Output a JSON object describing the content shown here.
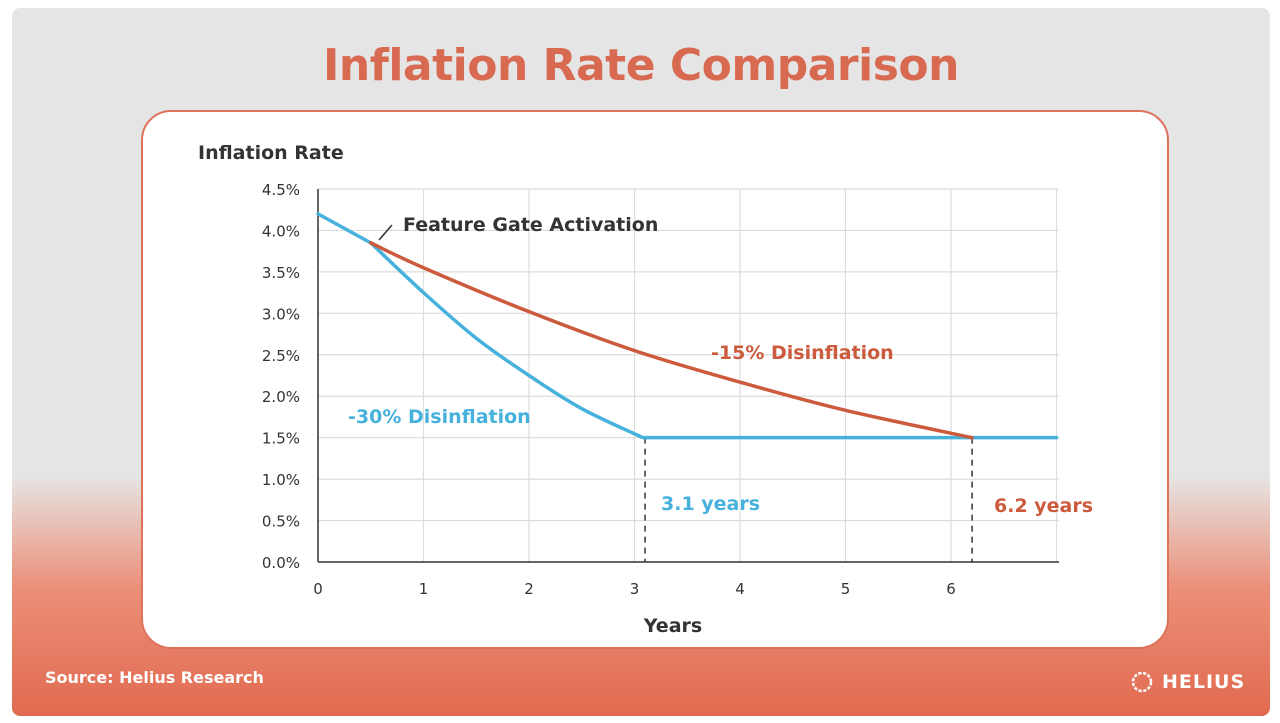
{
  "page": {
    "title": "Inflation Rate Comparison",
    "source": "Source: Helius Research",
    "logo_text": "HELIUS"
  },
  "colors": {
    "title": "#d96a52",
    "blue_series": "#45b1dc",
    "orange_series": "#cc5a3c",
    "grid": "#dcdcdc",
    "axis": "#333333"
  },
  "chart_data": {
    "type": "line",
    "title": "Inflation Rate Comparison",
    "ylabel": "Inflation Rate",
    "xlabel": "Years",
    "xlim": [
      0,
      7
    ],
    "ylim": [
      0,
      4.5
    ],
    "x_ticks": [
      "0",
      "1",
      "2",
      "3",
      "4",
      "5",
      "6"
    ],
    "y_ticks": [
      "0.0%",
      "0.5%",
      "1.0%",
      "1.5%",
      "2.0%",
      "2.5%",
      "3.0%",
      "3.5%",
      "4.0%",
      "4.5%"
    ],
    "grid": true,
    "series": [
      {
        "name": "-30% Disinflation",
        "color": "#45b1dc",
        "x": [
          0,
          0.5,
          1.0,
          1.5,
          2.0,
          2.5,
          3.08,
          7.0
        ],
        "y": [
          4.2,
          3.85,
          3.25,
          2.7,
          2.25,
          1.85,
          1.5,
          1.5
        ]
      },
      {
        "name": "-15% Disinflation",
        "color": "#cc5a3c",
        "x": [
          0.5,
          1.0,
          2.0,
          3.0,
          4.0,
          5.0,
          6.2
        ],
        "y": [
          3.85,
          3.55,
          3.02,
          2.55,
          2.17,
          1.83,
          1.5
        ]
      }
    ],
    "annotations": {
      "feature_gate": {
        "label": "Feature Gate Activation",
        "x": 0.5,
        "y": 3.85
      },
      "blue_series_label": "-30% Disinflation",
      "orange_series_label": "-15% Disinflation",
      "blue_years": {
        "label": "3.1 years",
        "x": 3.1
      },
      "orange_years": {
        "label": "6.2 years",
        "x": 6.2
      }
    }
  }
}
